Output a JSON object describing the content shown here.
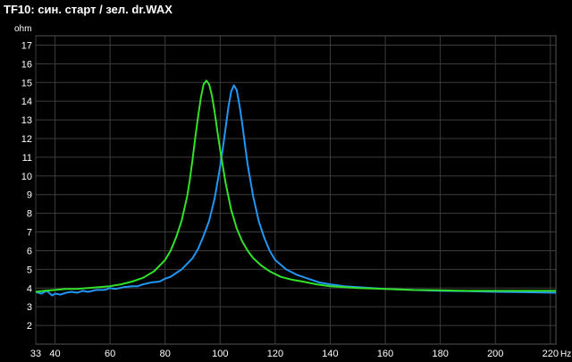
{
  "chart_data": {
    "type": "line",
    "title": "TF10: син. старт / зел. dr.WAX",
    "ylabel": "ohm",
    "xlabel": "Hz",
    "xlim": [
      33,
      222
    ],
    "ylim": [
      1,
      17.5
    ],
    "grid": true,
    "x_ticks": [
      33,
      40,
      60,
      80,
      100,
      120,
      140,
      160,
      180,
      200,
      220
    ],
    "y_ticks": [
      2,
      3,
      4,
      5,
      6,
      7,
      8,
      9,
      10,
      11,
      12,
      13,
      14,
      15,
      16,
      17
    ],
    "series": [
      {
        "color": "#2196f3",
        "x": [
          33,
          35,
          37,
          39,
          40,
          42,
          44,
          46,
          48,
          50,
          52,
          55,
          58,
          60,
          62,
          65,
          68,
          70,
          72,
          75,
          78,
          80,
          82,
          84,
          86,
          88,
          90,
          92,
          94,
          96,
          98,
          100,
          101,
          102,
          103,
          104,
          105,
          106,
          107,
          108,
          109,
          110,
          112,
          114,
          116,
          118,
          120,
          124,
          128,
          132,
          136,
          140,
          145,
          150,
          155,
          160,
          170,
          180,
          190,
          200,
          210,
          222
        ],
        "y": [
          3.8,
          3.7,
          3.85,
          3.6,
          3.7,
          3.65,
          3.75,
          3.8,
          3.75,
          3.85,
          3.8,
          3.9,
          3.9,
          4.0,
          3.95,
          4.05,
          4.1,
          4.1,
          4.2,
          4.3,
          4.35,
          4.5,
          4.6,
          4.8,
          5.0,
          5.3,
          5.6,
          6.1,
          6.8,
          7.6,
          8.8,
          10.5,
          11.5,
          12.6,
          13.7,
          14.5,
          14.85,
          14.6,
          13.8,
          12.8,
          11.7,
          10.6,
          8.9,
          7.6,
          6.7,
          6.0,
          5.5,
          5.0,
          4.7,
          4.5,
          4.3,
          4.2,
          4.1,
          4.05,
          4.0,
          3.95,
          3.9,
          3.85,
          3.83,
          3.8,
          3.78,
          3.75
        ]
      },
      {
        "color": "#33e02a",
        "x": [
          33,
          36,
          40,
          44,
          48,
          52,
          56,
          60,
          64,
          68,
          72,
          76,
          80,
          82,
          84,
          86,
          88,
          89,
          90,
          91,
          92,
          93,
          94,
          95,
          96,
          97,
          98,
          99,
          100,
          102,
          104,
          106,
          108,
          110,
          112,
          115,
          118,
          122,
          126,
          130,
          135,
          140,
          150,
          160,
          170,
          180,
          190,
          200,
          210,
          222
        ],
        "y": [
          3.8,
          3.85,
          3.9,
          3.95,
          3.95,
          4.0,
          4.05,
          4.1,
          4.2,
          4.35,
          4.55,
          4.9,
          5.5,
          6.0,
          6.7,
          7.6,
          8.9,
          9.8,
          10.9,
          12.1,
          13.2,
          14.2,
          14.9,
          15.1,
          14.9,
          14.3,
          13.4,
          12.4,
          11.4,
          9.6,
          8.2,
          7.2,
          6.5,
          6.0,
          5.6,
          5.2,
          4.9,
          4.6,
          4.45,
          4.35,
          4.2,
          4.1,
          4.0,
          3.95,
          3.9,
          3.88,
          3.85,
          3.85,
          3.85,
          3.85
        ]
      }
    ]
  }
}
